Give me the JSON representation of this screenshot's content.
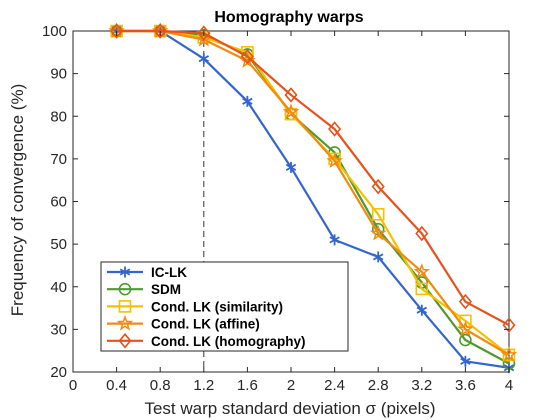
{
  "chart_data": {
    "type": "line",
    "title": "Homography warps",
    "xlabel": "Test warp standard deviation σ (pixels)",
    "ylabel": "Frequency of convergence (%)",
    "xlim": [
      0,
      4
    ],
    "ylim": [
      20,
      100
    ],
    "xticks": [
      "0",
      "0.4",
      "0.8",
      "1.2",
      "1.6",
      "2",
      "2.4",
      "2.8",
      "3.2",
      "3.6",
      "4"
    ],
    "yticks": [
      "20",
      "30",
      "40",
      "50",
      "60",
      "70",
      "80",
      "90",
      "100"
    ],
    "grid": false,
    "legend_position": "bottom-left",
    "reference_line": {
      "x": 1.2,
      "style": "dashed"
    },
    "x": [
      0.4,
      0.8,
      1.2,
      1.6,
      2.0,
      2.4,
      2.8,
      3.2,
      3.6,
      4.0
    ],
    "series": [
      {
        "name": "IC-LK",
        "color": "#3366cc",
        "marker": "asterisk",
        "values": [
          100,
          100,
          93.5,
          83.5,
          68,
          51,
          47,
          34.5,
          22.5,
          21
        ]
      },
      {
        "name": "SDM",
        "color": "#4e9a2e",
        "marker": "circle",
        "values": [
          100,
          100,
          99,
          94.5,
          80.5,
          71.5,
          53.5,
          41,
          27.5,
          22
        ]
      },
      {
        "name": "Cond. LK (similarity)",
        "color": "#f5c000",
        "marker": "square",
        "values": [
          100,
          100,
          98.5,
          95,
          80.5,
          70,
          57,
          39.5,
          32,
          24
        ]
      },
      {
        "name": "Cond. LK (affine)",
        "color": "#f28a10",
        "marker": "star",
        "values": [
          100,
          100,
          98,
          93,
          81,
          69.5,
          52.5,
          43.5,
          30,
          24
        ]
      },
      {
        "name": "Cond. LK (homography)",
        "color": "#e8511a",
        "marker": "diamond",
        "values": [
          100,
          100,
          99.5,
          94,
          85,
          77,
          63.5,
          52.5,
          36.5,
          31
        ]
      }
    ]
  }
}
